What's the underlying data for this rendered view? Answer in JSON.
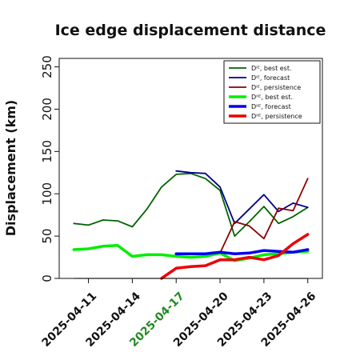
{
  "chart_data": {
    "type": "line",
    "title": "Ice edge displacement distance",
    "ylabel": "Displacement (km)",
    "xlabel": "",
    "ylim": [
      0,
      260
    ],
    "yticks": [
      0,
      50,
      100,
      150,
      200,
      250
    ],
    "xlim": [
      "2025-04-09",
      "2025-04-27"
    ],
    "xticks": [
      {
        "date": "2025-04-11",
        "label": "2025-04-11",
        "color": "#111111"
      },
      {
        "date": "2025-04-14",
        "label": "2025-04-14",
        "color": "#111111"
      },
      {
        "date": "2025-04-17",
        "label": "2025-04-17",
        "color": "#228B22"
      },
      {
        "date": "2025-04-20",
        "label": "2025-04-20",
        "color": "#111111"
      },
      {
        "date": "2025-04-23",
        "label": "2025-04-23",
        "color": "#111111"
      },
      {
        "date": "2025-04-26",
        "label": "2025-04-26",
        "color": "#111111"
      }
    ],
    "legend_position": "top-right",
    "series": [
      {
        "name": "Dᴵᴱ, best est.",
        "color": "#006400",
        "width": 1.8,
        "x": [
          "2025-04-10",
          "2025-04-11",
          "2025-04-12",
          "2025-04-13",
          "2025-04-14",
          "2025-04-15",
          "2025-04-16",
          "2025-04-17",
          "2025-04-18",
          "2025-04-19",
          "2025-04-20",
          "2025-04-21",
          "2025-04-22",
          "2025-04-23",
          "2025-04-24",
          "2025-04-25",
          "2025-04-26"
        ],
        "values": [
          65,
          63,
          69,
          68,
          61,
          82,
          108,
          123,
          124,
          118,
          104,
          50,
          67,
          85,
          65,
          73,
          84
        ]
      },
      {
        "name": "Dᴵᴱ, forecast",
        "color": "#00008B",
        "width": 1.8,
        "x": [
          "2025-04-17",
          "2025-04-18",
          "2025-04-19",
          "2025-04-20",
          "2025-04-21",
          "2025-04-22",
          "2025-04-23",
          "2025-04-24",
          "2025-04-25",
          "2025-04-26"
        ],
        "values": [
          127,
          125,
          124,
          108,
          65,
          82,
          99,
          79,
          89,
          84
        ]
      },
      {
        "name": "Dᴵᴱ, persistence",
        "color": "#8B0000",
        "width": 1.8,
        "x": [
          "2025-04-20",
          "2025-04-21",
          "2025-04-22",
          "2025-04-23",
          "2025-04-24",
          "2025-04-25",
          "2025-04-26"
        ],
        "values": [
          30,
          67,
          62,
          47,
          83,
          80,
          118
        ]
      },
      {
        "name": "Dᴵᴵᴱ, best est.",
        "color": "#00EE00",
        "width": 3.5,
        "x": [
          "2025-04-10",
          "2025-04-11",
          "2025-04-12",
          "2025-04-13",
          "2025-04-14",
          "2025-04-15",
          "2025-04-16",
          "2025-04-17",
          "2025-04-18",
          "2025-04-19",
          "2025-04-20",
          "2025-04-21",
          "2025-04-22",
          "2025-04-23",
          "2025-04-24",
          "2025-04-25",
          "2025-04-26"
        ],
        "values": [
          34,
          35,
          38,
          39,
          26,
          28,
          28,
          26,
          25,
          26,
          30,
          21,
          24,
          28,
          29,
          31,
          32
        ]
      },
      {
        "name": "Dᴵᴵᴱ, forecast",
        "color": "#0000EE",
        "width": 3.5,
        "x": [
          "2025-04-17",
          "2025-04-18",
          "2025-04-19",
          "2025-04-20",
          "2025-04-21",
          "2025-04-22",
          "2025-04-23",
          "2025-04-24",
          "2025-04-25",
          "2025-04-26"
        ],
        "values": [
          29,
          29,
          29,
          31,
          29,
          30,
          33,
          32,
          31,
          34
        ]
      },
      {
        "name": "Dᴵᴵᴱ, persistence",
        "color": "#EE0000",
        "width": 3.5,
        "x": [
          "2025-04-16",
          "2025-04-17",
          "2025-04-18",
          "2025-04-19",
          "2025-04-20",
          "2025-04-21",
          "2025-04-22",
          "2025-04-23",
          "2025-04-24",
          "2025-04-25",
          "2025-04-26"
        ],
        "values": [
          0,
          12,
          14,
          15,
          22,
          22,
          25,
          22,
          27,
          41,
          52
        ]
      },
      {
        "name": "",
        "color": "#555555",
        "width": 1.2,
        "x": [
          "2025-04-10",
          "2025-04-26"
        ],
        "values": [
          0,
          0
        ]
      }
    ]
  }
}
